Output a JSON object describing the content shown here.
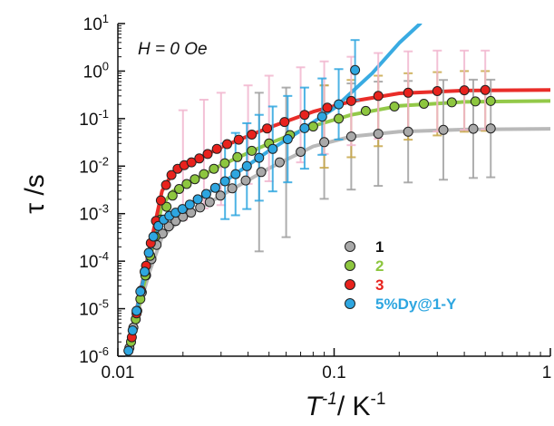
{
  "chart_data": {
    "type": "scatter",
    "title": "",
    "annotation": "H = 0 Oe",
    "xlabel": "T-1/K-1",
    "ylabel": "τ /s",
    "xscale": "log",
    "yscale": "log",
    "xlim": [
      0.01,
      1
    ],
    "ylim": [
      1e-06,
      10
    ],
    "x_ticks": [
      "0.01",
      "0.1",
      "1"
    ],
    "y_ticks": [
      {
        "base": "10",
        "exp": "-6",
        "value": 1e-06
      },
      {
        "base": "10",
        "exp": "-5",
        "value": 1e-05
      },
      {
        "base": "10",
        "exp": "-4",
        "value": 0.0001
      },
      {
        "base": "10",
        "exp": "-3",
        "value": 0.001
      },
      {
        "base": "10",
        "exp": "-2",
        "value": 0.01
      },
      {
        "base": "10",
        "exp": "-1",
        "value": 0.1
      },
      {
        "base": "10",
        "exp": "0",
        "value": 1
      },
      {
        "base": "10",
        "exp": "1",
        "value": 10
      }
    ],
    "legend_position": "lower-right inside",
    "series": [
      {
        "name": "1",
        "color": "#a9a9a9",
        "line_color": "#b5b5b5",
        "error_color": "#a0a0a0",
        "points": [
          [
            0.0113,
            1.5e-06
          ],
          [
            0.0118,
            4e-06
          ],
          [
            0.0123,
            9e-06
          ],
          [
            0.0129,
            2.2e-05
          ],
          [
            0.0135,
            5e-05
          ],
          [
            0.0143,
            0.00011
          ],
          [
            0.0151,
            0.00022
          ],
          [
            0.0161,
            0.00038
          ],
          [
            0.0172,
            0.00054
          ],
          [
            0.0185,
            0.0007
          ],
          [
            0.02,
            0.00086
          ],
          [
            0.0218,
            0.00105
          ],
          [
            0.024,
            0.00135
          ],
          [
            0.0266,
            0.00175
          ],
          [
            0.0298,
            0.0024
          ],
          [
            0.0338,
            0.0034
          ],
          [
            0.039,
            0.005
          ],
          [
            0.046,
            0.0075
          ],
          [
            0.056,
            0.012
          ],
          [
            0.07,
            0.02
          ],
          [
            0.09,
            0.032
          ],
          [
            0.12,
            0.042
          ],
          [
            0.16,
            0.048
          ],
          [
            0.22,
            0.053
          ],
          [
            0.32,
            0.058
          ],
          [
            0.44,
            0.061
          ],
          [
            0.53,
            0.062
          ]
        ],
        "errors": [
          [
            0.045,
            0.35
          ],
          [
            0.06,
            0.45
          ],
          [
            0.09,
            0.5
          ],
          [
            0.12,
            0.55
          ],
          [
            0.16,
            0.6
          ],
          [
            0.22,
            0.62
          ],
          [
            0.32,
            0.65
          ],
          [
            0.44,
            0.66
          ],
          [
            0.53,
            0.66
          ]
        ],
        "fit": [
          [
            0.011,
            1.2e-06
          ],
          [
            0.0125,
            1e-05
          ],
          [
            0.014,
            6e-05
          ],
          [
            0.016,
            0.00032
          ],
          [
            0.018,
            0.00054
          ],
          [
            0.02,
            0.0008
          ],
          [
            0.03,
            0.0024
          ],
          [
            0.05,
            0.009
          ],
          [
            0.08,
            0.026
          ],
          [
            0.12,
            0.042
          ],
          [
            0.2,
            0.053
          ],
          [
            0.4,
            0.059
          ],
          [
            1,
            0.061
          ]
        ]
      },
      {
        "name": "2",
        "color": "#8dc63f",
        "line_color": "#8dc63f",
        "error_color": "#c8a84a",
        "points": [
          [
            0.0115,
            2e-06
          ],
          [
            0.0121,
            6e-06
          ],
          [
            0.0127,
            1.6e-05
          ],
          [
            0.0134,
            5e-05
          ],
          [
            0.0141,
            0.00013
          ],
          [
            0.0149,
            0.00033
          ],
          [
            0.0158,
            0.00075
          ],
          [
            0.0168,
            0.0014
          ],
          [
            0.0179,
            0.0024
          ],
          [
            0.0192,
            0.0033
          ],
          [
            0.0208,
            0.0042
          ],
          [
            0.0227,
            0.0053
          ],
          [
            0.025,
            0.0068
          ],
          [
            0.0278,
            0.0088
          ],
          [
            0.0312,
            0.0115
          ],
          [
            0.0357,
            0.0155
          ],
          [
            0.0416,
            0.021
          ],
          [
            0.05,
            0.03
          ],
          [
            0.0625,
            0.045
          ],
          [
            0.08,
            0.068
          ],
          [
            0.105,
            0.1
          ],
          [
            0.14,
            0.145
          ],
          [
            0.19,
            0.18
          ],
          [
            0.26,
            0.205
          ],
          [
            0.35,
            0.22
          ],
          [
            0.45,
            0.23
          ],
          [
            0.53,
            0.235
          ]
        ],
        "errors": [
          [
            0.09,
            0.5
          ],
          [
            0.12,
            0.65
          ],
          [
            0.16,
            0.8
          ],
          [
            0.22,
            0.9
          ],
          [
            0.3,
            0.95
          ],
          [
            0.4,
            1.0
          ],
          [
            0.5,
            1.0
          ]
        ],
        "fit": [
          [
            0.011,
            1e-06
          ],
          [
            0.0125,
            1.2e-05
          ],
          [
            0.014,
            0.0001
          ],
          [
            0.016,
            0.0015
          ],
          [
            0.018,
            0.003
          ],
          [
            0.02,
            0.0038
          ],
          [
            0.03,
            0.0105
          ],
          [
            0.05,
            0.03
          ],
          [
            0.08,
            0.07
          ],
          [
            0.12,
            0.12
          ],
          [
            0.2,
            0.185
          ],
          [
            0.4,
            0.225
          ],
          [
            1,
            0.235
          ]
        ]
      },
      {
        "name": "3",
        "color": "#e8221d",
        "line_color": "#e8221d",
        "error_color": "#f2b7cf",
        "points": [
          [
            0.0116,
            2.5e-06
          ],
          [
            0.0122,
            8e-06
          ],
          [
            0.0128,
            2.4e-05
          ],
          [
            0.0135,
            8e-05
          ],
          [
            0.0142,
            0.00024
          ],
          [
            0.015,
            0.0007
          ],
          [
            0.0158,
            0.0019
          ],
          [
            0.0167,
            0.004
          ],
          [
            0.0177,
            0.0065
          ],
          [
            0.0189,
            0.0088
          ],
          [
            0.0203,
            0.0105
          ],
          [
            0.0219,
            0.012
          ],
          [
            0.0238,
            0.0145
          ],
          [
            0.026,
            0.018
          ],
          [
            0.0287,
            0.023
          ],
          [
            0.032,
            0.029
          ],
          [
            0.0362,
            0.036
          ],
          [
            0.0416,
            0.046
          ],
          [
            0.049,
            0.062
          ],
          [
            0.059,
            0.085
          ],
          [
            0.073,
            0.12
          ],
          [
            0.093,
            0.17
          ],
          [
            0.12,
            0.235
          ],
          [
            0.16,
            0.3
          ],
          [
            0.22,
            0.35
          ],
          [
            0.3,
            0.38
          ],
          [
            0.4,
            0.395
          ],
          [
            0.5,
            0.4
          ]
        ],
        "errors": [
          [
            0.02,
            0.15
          ],
          [
            0.025,
            0.25
          ],
          [
            0.03,
            0.35
          ],
          [
            0.04,
            0.5
          ],
          [
            0.05,
            0.8
          ],
          [
            0.07,
            1.2
          ],
          [
            0.09,
            1.6
          ],
          [
            0.12,
            2.0
          ],
          [
            0.16,
            2.4
          ],
          [
            0.22,
            2.6
          ],
          [
            0.3,
            2.7
          ],
          [
            0.4,
            2.7
          ],
          [
            0.5,
            2.7
          ]
        ],
        "fit": [
          [
            0.011,
            1e-06
          ],
          [
            0.0125,
            1.6e-05
          ],
          [
            0.014,
            0.00018
          ],
          [
            0.016,
            0.003
          ],
          [
            0.018,
            0.0075
          ],
          [
            0.02,
            0.01
          ],
          [
            0.03,
            0.025
          ],
          [
            0.05,
            0.065
          ],
          [
            0.08,
            0.14
          ],
          [
            0.12,
            0.23
          ],
          [
            0.2,
            0.34
          ],
          [
            0.4,
            0.39
          ],
          [
            1,
            0.4
          ]
        ]
      },
      {
        "name": "5%Dy@1-Y",
        "color": "#2ea6e0",
        "line_color": "#2ea6e0",
        "error_color": "#2ea6e0",
        "points": [
          [
            0.0112,
            1.3e-06
          ],
          [
            0.0117,
            3.5e-06
          ],
          [
            0.0122,
            9e-06
          ],
          [
            0.0127,
            2.3e-05
          ],
          [
            0.0133,
            6e-05
          ],
          [
            0.0139,
            0.00015
          ],
          [
            0.0146,
            0.00033
          ],
          [
            0.0154,
            0.00055
          ],
          [
            0.0163,
            0.00075
          ],
          [
            0.0173,
            0.0009
          ],
          [
            0.0185,
            0.00105
          ],
          [
            0.0199,
            0.00125
          ],
          [
            0.0215,
            0.00155
          ],
          [
            0.0234,
            0.002
          ],
          [
            0.0256,
            0.0026
          ],
          [
            0.0282,
            0.0035
          ],
          [
            0.0313,
            0.0048
          ],
          [
            0.035,
            0.0068
          ],
          [
            0.0395,
            0.01
          ],
          [
            0.045,
            0.015
          ],
          [
            0.052,
            0.023
          ],
          [
            0.061,
            0.037
          ],
          [
            0.073,
            0.063
          ],
          [
            0.088,
            0.11
          ],
          [
            0.105,
            0.2
          ],
          [
            0.125,
            1.05
          ]
        ],
        "errors": [
          [
            0.0313,
            0.03
          ],
          [
            0.035,
            0.05
          ],
          [
            0.0395,
            0.08
          ],
          [
            0.045,
            0.12
          ],
          [
            0.052,
            0.18
          ],
          [
            0.061,
            0.3
          ],
          [
            0.073,
            0.45
          ],
          [
            0.088,
            0.7
          ],
          [
            0.105,
            1.1
          ],
          [
            0.125,
            4.5
          ]
        ],
        "fit": [
          [
            0.011,
            1e-06
          ],
          [
            0.0125,
            1.5e-05
          ],
          [
            0.014,
            0.00016
          ],
          [
            0.016,
            0.0007
          ],
          [
            0.018,
            0.001
          ],
          [
            0.02,
            0.0013
          ],
          [
            0.025,
            0.0024
          ],
          [
            0.03,
            0.0042
          ],
          [
            0.04,
            0.0105
          ],
          [
            0.05,
            0.021
          ],
          [
            0.07,
            0.056
          ],
          [
            0.1,
            0.165
          ],
          [
            0.15,
            0.9
          ],
          [
            0.2,
            3.9
          ],
          [
            0.25,
            10
          ]
        ]
      }
    ]
  }
}
